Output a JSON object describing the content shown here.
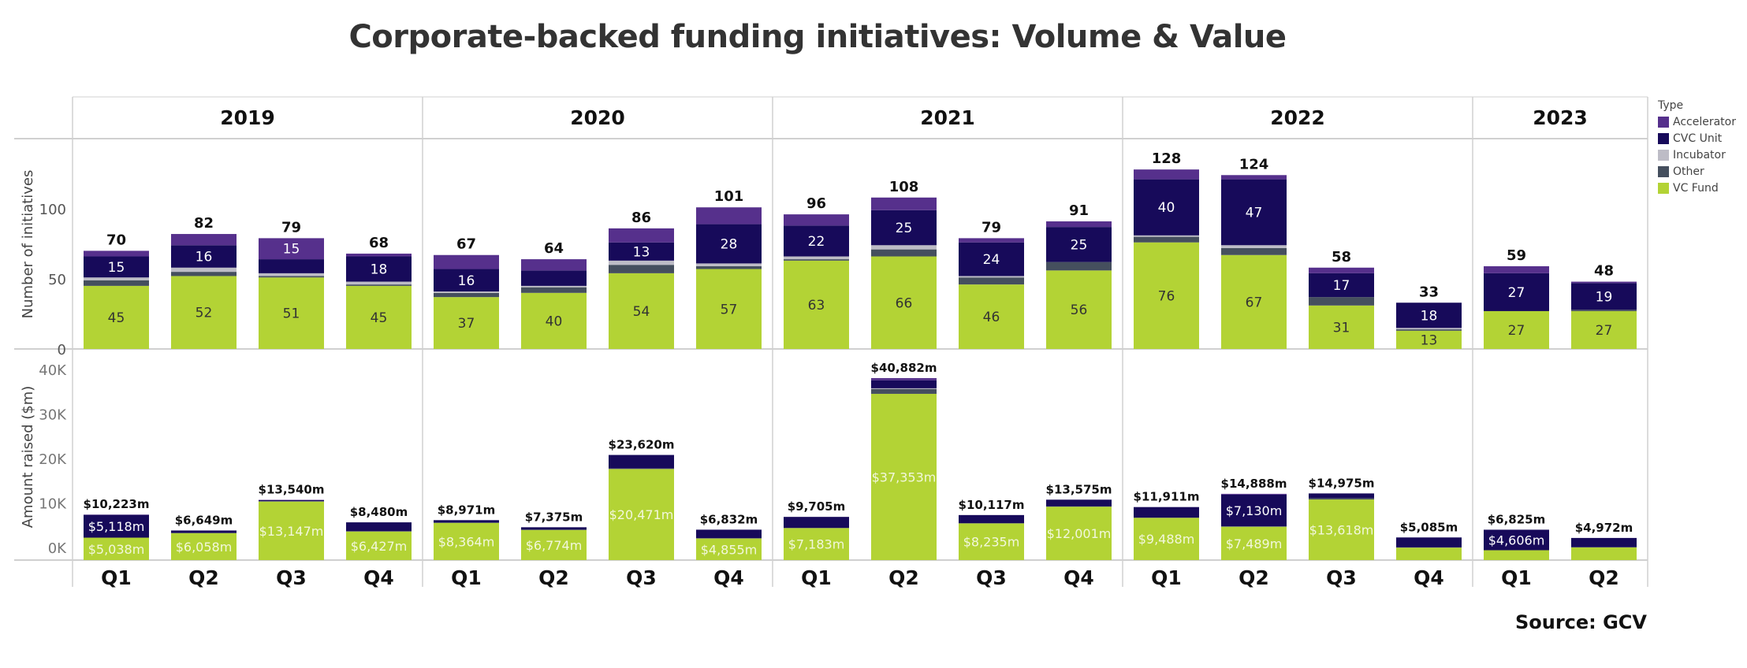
{
  "title": "Corporate-backed funding initiatives: Volume & Value",
  "source": "Source: GCV",
  "legend": {
    "title": "Type",
    "items": [
      {
        "label": "Accelerator",
        "color": "#56308c"
      },
      {
        "label": "CVC Unit",
        "color": "#170a5a"
      },
      {
        "label": "Incubator",
        "color": "#bdbcc6"
      },
      {
        "label": "Other",
        "color": "#454f5e"
      },
      {
        "label": "VC Fund",
        "color": "#b3d335"
      }
    ]
  },
  "chart_data": {
    "type": "bar",
    "stacked": true,
    "title": "Corporate-backed funding initiatives: Volume & Value",
    "years": [
      "2019",
      "2020",
      "2021",
      "2022",
      "2023"
    ],
    "quarters": [
      [
        "Q1",
        "Q2",
        "Q3",
        "Q4"
      ],
      [
        "Q1",
        "Q2",
        "Q3",
        "Q4"
      ],
      [
        "Q1",
        "Q2",
        "Q3",
        "Q4"
      ],
      [
        "Q1",
        "Q2",
        "Q3",
        "Q4"
      ],
      [
        "Q1",
        "Q2"
      ]
    ],
    "stack_order": [
      "VC Fund",
      "Other",
      "Incubator",
      "CVC Unit",
      "Accelerator"
    ],
    "panels": [
      {
        "name": "volume",
        "ylabel": "Number of initiatives",
        "ylim": [
          0,
          160
        ],
        "yticks": [
          0,
          50,
          100
        ],
        "ytick_labels": [
          "0",
          "50",
          "100"
        ],
        "bars": [
          {
            "year": "2019",
            "quarter": "Q1",
            "total": 70,
            "total_label": "70",
            "segments": {
              "VC Fund": 45,
              "Other": 4,
              "Incubator": 2,
              "CVC Unit": 15,
              "Accelerator": 4
            },
            "labels": {
              "VC Fund": "45",
              "CVC Unit": "15"
            }
          },
          {
            "year": "2019",
            "quarter": "Q2",
            "total": 82,
            "total_label": "82",
            "segments": {
              "VC Fund": 52,
              "Other": 3,
              "Incubator": 3,
              "CVC Unit": 16,
              "Accelerator": 8
            },
            "labels": {
              "VC Fund": "52",
              "CVC Unit": "16"
            }
          },
          {
            "year": "2019",
            "quarter": "Q3",
            "total": 79,
            "total_label": "79",
            "segments": {
              "VC Fund": 51,
              "Other": 1,
              "Incubator": 2,
              "CVC Unit": 10,
              "Accelerator": 15
            },
            "labels": {
              "VC Fund": "51",
              "Accelerator": "15"
            }
          },
          {
            "year": "2019",
            "quarter": "Q4",
            "total": 68,
            "total_label": "68",
            "segments": {
              "VC Fund": 45,
              "Other": 1,
              "Incubator": 2,
              "CVC Unit": 18,
              "Accelerator": 2
            },
            "labels": {
              "VC Fund": "45",
              "CVC Unit": "18"
            }
          },
          {
            "year": "2020",
            "quarter": "Q1",
            "total": 67,
            "total_label": "67",
            "segments": {
              "VC Fund": 37,
              "Other": 3,
              "Incubator": 1,
              "CVC Unit": 16,
              "Accelerator": 10
            },
            "labels": {
              "VC Fund": "37",
              "CVC Unit": "16"
            }
          },
          {
            "year": "2020",
            "quarter": "Q2",
            "total": 64,
            "total_label": "64",
            "segments": {
              "VC Fund": 40,
              "Other": 4,
              "Incubator": 1,
              "CVC Unit": 11,
              "Accelerator": 8
            },
            "labels": {
              "VC Fund": "40"
            }
          },
          {
            "year": "2020",
            "quarter": "Q3",
            "total": 86,
            "total_label": "86",
            "segments": {
              "VC Fund": 54,
              "Other": 6,
              "Incubator": 3,
              "CVC Unit": 13,
              "Accelerator": 10
            },
            "labels": {
              "VC Fund": "54",
              "CVC Unit": "13"
            }
          },
          {
            "year": "2020",
            "quarter": "Q4",
            "total": 101,
            "total_label": "101",
            "segments": {
              "VC Fund": 57,
              "Other": 2,
              "Incubator": 2,
              "CVC Unit": 28,
              "Accelerator": 12
            },
            "labels": {
              "VC Fund": "57",
              "CVC Unit": "28"
            }
          },
          {
            "year": "2021",
            "quarter": "Q1",
            "total": 96,
            "total_label": "96",
            "segments": {
              "VC Fund": 63,
              "Other": 1,
              "Incubator": 2,
              "CVC Unit": 22,
              "Accelerator": 8
            },
            "labels": {
              "VC Fund": "63",
              "CVC Unit": "22"
            }
          },
          {
            "year": "2021",
            "quarter": "Q2",
            "total": 108,
            "total_label": "108",
            "segments": {
              "VC Fund": 66,
              "Other": 5,
              "Incubator": 3,
              "CVC Unit": 25,
              "Accelerator": 9
            },
            "labels": {
              "VC Fund": "66",
              "CVC Unit": "25"
            }
          },
          {
            "year": "2021",
            "quarter": "Q3",
            "total": 79,
            "total_label": "79",
            "segments": {
              "VC Fund": 46,
              "Other": 5,
              "Incubator": 1,
              "CVC Unit": 24,
              "Accelerator": 3
            },
            "labels": {
              "VC Fund": "46",
              "CVC Unit": "24"
            }
          },
          {
            "year": "2021",
            "quarter": "Q4",
            "total": 91,
            "total_label": "91",
            "segments": {
              "VC Fund": 56,
              "Other": 6,
              "Incubator": 0,
              "CVC Unit": 25,
              "Accelerator": 4
            },
            "labels": {
              "VC Fund": "56",
              "CVC Unit": "25"
            }
          },
          {
            "year": "2022",
            "quarter": "Q1",
            "total": 128,
            "total_label": "128",
            "segments": {
              "VC Fund": 76,
              "Other": 4,
              "Incubator": 1,
              "CVC Unit": 40,
              "Accelerator": 7
            },
            "labels": {
              "VC Fund": "76",
              "CVC Unit": "40"
            }
          },
          {
            "year": "2022",
            "quarter": "Q2",
            "total": 124,
            "total_label": "124",
            "segments": {
              "VC Fund": 67,
              "Other": 5,
              "Incubator": 2,
              "CVC Unit": 47,
              "Accelerator": 3
            },
            "labels": {
              "VC Fund": "67",
              "CVC Unit": "47"
            }
          },
          {
            "year": "2022",
            "quarter": "Q3",
            "total": 58,
            "total_label": "58",
            "segments": {
              "VC Fund": 31,
              "Other": 6,
              "Incubator": 0,
              "CVC Unit": 17,
              "Accelerator": 4
            },
            "labels": {
              "VC Fund": "31",
              "CVC Unit": "17"
            }
          },
          {
            "year": "2022",
            "quarter": "Q4",
            "total": 33,
            "total_label": "33",
            "segments": {
              "VC Fund": 13,
              "Other": 1,
              "Incubator": 1,
              "CVC Unit": 18,
              "Accelerator": 0
            },
            "labels": {
              "VC Fund": "13",
              "CVC Unit": "18"
            }
          },
          {
            "year": "2023",
            "quarter": "Q1",
            "total": 59,
            "total_label": "59",
            "segments": {
              "VC Fund": 27,
              "Other": 0,
              "Incubator": 0,
              "CVC Unit": 27,
              "Accelerator": 5
            },
            "labels": {
              "VC Fund": "27",
              "CVC Unit": "27"
            }
          },
          {
            "year": "2023",
            "quarter": "Q2",
            "total": 48,
            "total_label": "48",
            "segments": {
              "VC Fund": 27,
              "Other": 1,
              "Incubator": 0,
              "CVC Unit": 19,
              "Accelerator": 1
            },
            "labels": {
              "VC Fund": "27",
              "CVC Unit": "19"
            }
          }
        ]
      },
      {
        "name": "value",
        "ylabel": "Amount raised ($m)",
        "ylim": [
          0,
          46000
        ],
        "yticks": [
          0,
          10000,
          20000,
          30000,
          40000
        ],
        "ytick_labels": [
          "0K",
          "10K",
          "20K",
          "30K",
          "40K"
        ],
        "bars": [
          {
            "year": "2019",
            "quarter": "Q1",
            "total": 10223,
            "total_label": "$10,223m",
            "segments": {
              "VC Fund": 5038,
              "Other": 0,
              "Incubator": 0,
              "CVC Unit": 5118,
              "Accelerator": 67
            },
            "labels": {
              "VC Fund": "$5,038m",
              "CVC Unit": "$5,118m"
            }
          },
          {
            "year": "2019",
            "quarter": "Q2",
            "total": 6649,
            "total_label": "$6,649m",
            "segments": {
              "VC Fund": 6058,
              "Other": 50,
              "Incubator": 0,
              "CVC Unit": 541,
              "Accelerator": 0
            },
            "labels": {
              "VC Fund": "$6,058m"
            }
          },
          {
            "year": "2019",
            "quarter": "Q3",
            "total": 13540,
            "total_label": "$13,540m",
            "segments": {
              "VC Fund": 13147,
              "Other": 100,
              "Incubator": 0,
              "CVC Unit": 220,
              "Accelerator": 73
            },
            "labels": {
              "VC Fund": "$13,147m"
            }
          },
          {
            "year": "2019",
            "quarter": "Q4",
            "total": 8480,
            "total_label": "$8,480m",
            "segments": {
              "VC Fund": 6427,
              "Other": 50,
              "Incubator": 0,
              "CVC Unit": 2003,
              "Accelerator": 0
            },
            "labels": {
              "VC Fund": "$6,427m"
            }
          },
          {
            "year": "2020",
            "quarter": "Q1",
            "total": 8971,
            "total_label": "$8,971m",
            "segments": {
              "VC Fund": 8364,
              "Other": 50,
              "Incubator": 0,
              "CVC Unit": 557,
              "Accelerator": 0
            },
            "labels": {
              "VC Fund": "$8,364m"
            }
          },
          {
            "year": "2020",
            "quarter": "Q2",
            "total": 7375,
            "total_label": "$7,375m",
            "segments": {
              "VC Fund": 6774,
              "Other": 50,
              "Incubator": 0,
              "CVC Unit": 551,
              "Accelerator": 0
            },
            "labels": {
              "VC Fund": "$6,774m"
            }
          },
          {
            "year": "2020",
            "quarter": "Q3",
            "total": 23620,
            "total_label": "$23,620m",
            "segments": {
              "VC Fund": 20471,
              "Other": 100,
              "Incubator": 0,
              "CVC Unit": 3049,
              "Accelerator": 0
            },
            "labels": {
              "VC Fund": "$20,471m"
            }
          },
          {
            "year": "2020",
            "quarter": "Q4",
            "total": 6832,
            "total_label": "$6,832m",
            "segments": {
              "VC Fund": 4855,
              "Other": 50,
              "Incubator": 0,
              "CVC Unit": 1927,
              "Accelerator": 0
            },
            "labels": {
              "VC Fund": "$4,855m"
            }
          },
          {
            "year": "2021",
            "quarter": "Q1",
            "total": 9705,
            "total_label": "$9,705m",
            "segments": {
              "VC Fund": 7183,
              "Other": 50,
              "Incubator": 0,
              "CVC Unit": 2472,
              "Accelerator": 0
            },
            "labels": {
              "VC Fund": "$7,183m"
            }
          },
          {
            "year": "2021",
            "quarter": "Q2",
            "total": 40882,
            "total_label": "$40,882m",
            "segments": {
              "VC Fund": 37353,
              "Other": 1100,
              "Incubator": 150,
              "CVC Unit": 1800,
              "Accelerator": 479
            },
            "labels": {
              "VC Fund": "$37,353m"
            }
          },
          {
            "year": "2021",
            "quarter": "Q3",
            "total": 10117,
            "total_label": "$10,117m",
            "segments": {
              "VC Fund": 8235,
              "Other": 50,
              "Incubator": 0,
              "CVC Unit": 1832,
              "Accelerator": 0
            },
            "labels": {
              "VC Fund": "$8,235m"
            }
          },
          {
            "year": "2021",
            "quarter": "Q4",
            "total": 13575,
            "total_label": "$13,575m",
            "segments": {
              "VC Fund": 12001,
              "Other": 50,
              "Incubator": 0,
              "CVC Unit": 1524,
              "Accelerator": 0
            },
            "labels": {
              "VC Fund": "$12,001m"
            }
          },
          {
            "year": "2022",
            "quarter": "Q1",
            "total": 11911,
            "total_label": "$11,911m",
            "segments": {
              "VC Fund": 9488,
              "Other": 50,
              "Incubator": 0,
              "CVC Unit": 2373,
              "Accelerator": 0
            },
            "labels": {
              "VC Fund": "$9,488m"
            }
          },
          {
            "year": "2022",
            "quarter": "Q2",
            "total": 14888,
            "total_label": "$14,888m",
            "segments": {
              "VC Fund": 7489,
              "Other": 100,
              "Incubator": 0,
              "CVC Unit": 7130,
              "Accelerator": 169
            },
            "labels": {
              "VC Fund": "$7,489m",
              "CVC Unit": "$7,130m"
            }
          },
          {
            "year": "2022",
            "quarter": "Q3",
            "total": 14975,
            "total_label": "$14,975m",
            "segments": {
              "VC Fund": 13618,
              "Other": 300,
              "Incubator": 0,
              "CVC Unit": 1057,
              "Accelerator": 0
            },
            "labels": {
              "VC Fund": "$13,618m"
            }
          },
          {
            "year": "2022",
            "quarter": "Q4",
            "total": 5085,
            "total_label": "$5,085m",
            "segments": {
              "VC Fund": 2800,
              "Other": 50,
              "Incubator": 0,
              "CVC Unit": 2235,
              "Accelerator": 0
            },
            "labels": {}
          },
          {
            "year": "2023",
            "quarter": "Q1",
            "total": 6825,
            "total_label": "$6,825m",
            "segments": {
              "VC Fund": 2219,
              "Other": 0,
              "Incubator": 0,
              "CVC Unit": 4606,
              "Accelerator": 0
            },
            "labels": {
              "CVC Unit": "$4,606m"
            }
          },
          {
            "year": "2023",
            "quarter": "Q2",
            "total": 4972,
            "total_label": "$4,972m",
            "segments": {
              "VC Fund": 2850,
              "Other": 50,
              "Incubator": 0,
              "CVC Unit": 2072,
              "Accelerator": 0
            },
            "labels": {}
          }
        ]
      }
    ]
  }
}
